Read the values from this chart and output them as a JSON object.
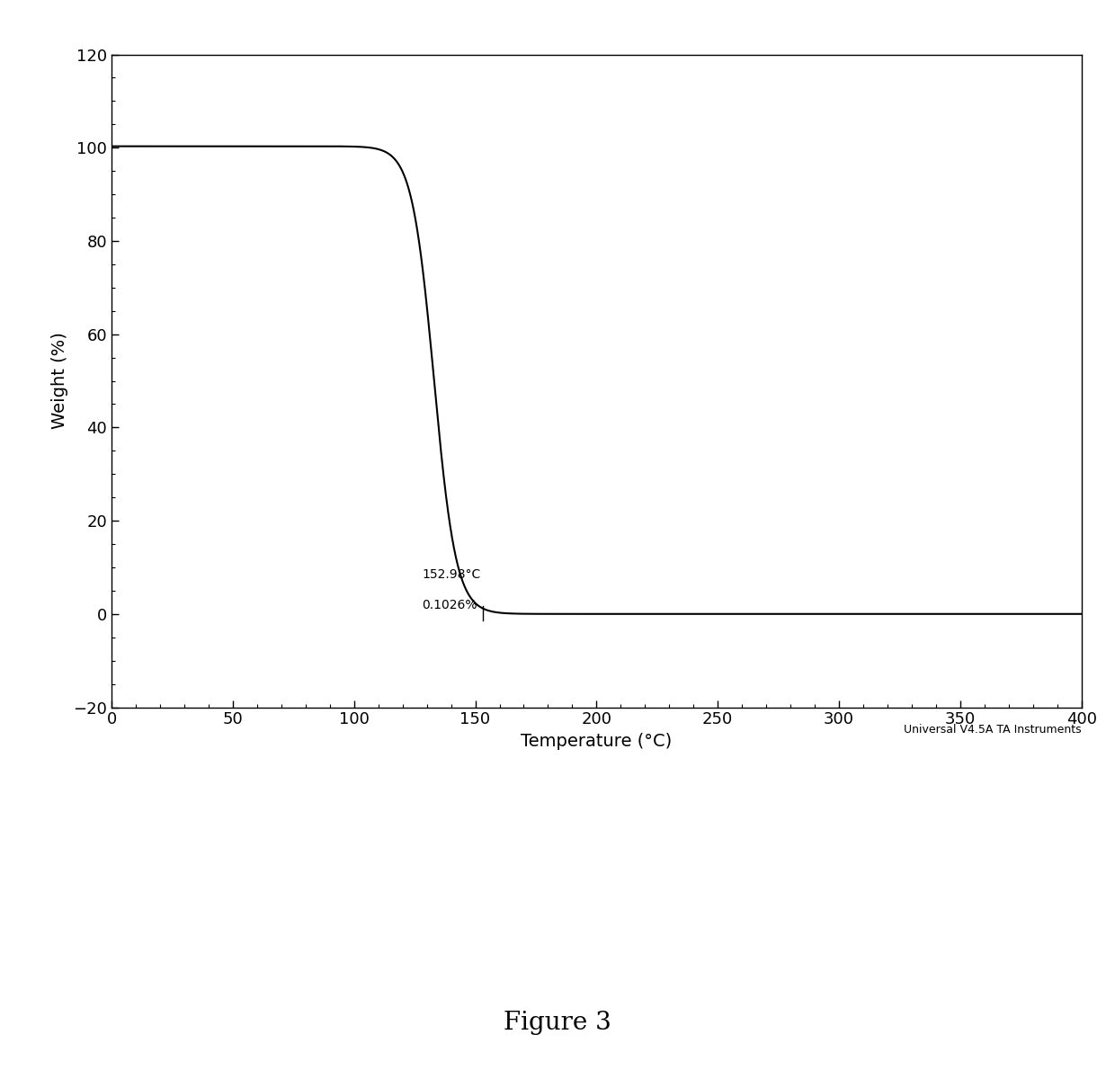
{
  "title": "Figure 3",
  "xlabel": "Temperature (°C)",
  "ylabel": "Weight (%)",
  "xlim": [
    0,
    400
  ],
  "ylim": [
    -20,
    120
  ],
  "xticks": [
    0,
    50,
    100,
    150,
    200,
    250,
    300,
    350,
    400
  ],
  "yticks": [
    -20,
    0,
    20,
    40,
    60,
    80,
    100,
    120
  ],
  "annotation_temp": 152.98,
  "annotation_weight": 0.1026,
  "annotation_text1": "152.98°C",
  "annotation_text2": "0.1026%",
  "watermark": "Universal V4.5A TA Instruments",
  "line_color": "#000000",
  "background_color": "#ffffff",
  "w_start": 100.3,
  "w_end": 0.0,
  "sigmoid_midpoint": 133.0,
  "sigmoid_steepness": 0.22,
  "line_width": 1.5,
  "title_fontsize": 20,
  "axis_label_fontsize": 14,
  "tick_label_fontsize": 13
}
